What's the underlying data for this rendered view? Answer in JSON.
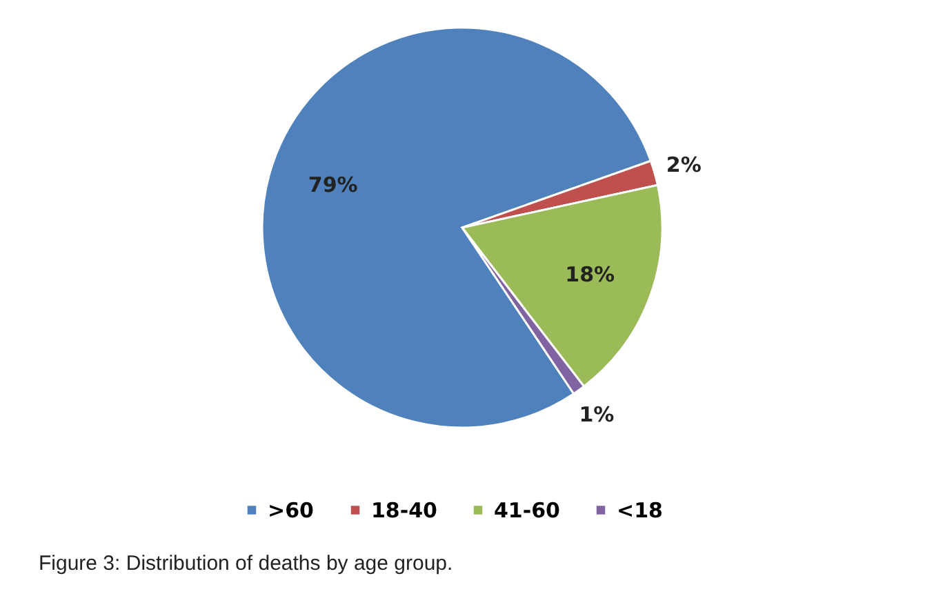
{
  "chart_data": {
    "type": "pie",
    "categories": [
      ">60",
      "18-40",
      "41-60",
      "<18"
    ],
    "values": [
      79,
      2,
      18,
      1
    ],
    "colors": [
      "#4f81bd",
      "#c0504d",
      "#9bbb59",
      "#8064a2"
    ],
    "value_labels": [
      "79%",
      "2%",
      "18%",
      "1%"
    ],
    "legend": "bottom",
    "annotations": [
      "Figure 3: Distribution of deaths by age group."
    ]
  }
}
